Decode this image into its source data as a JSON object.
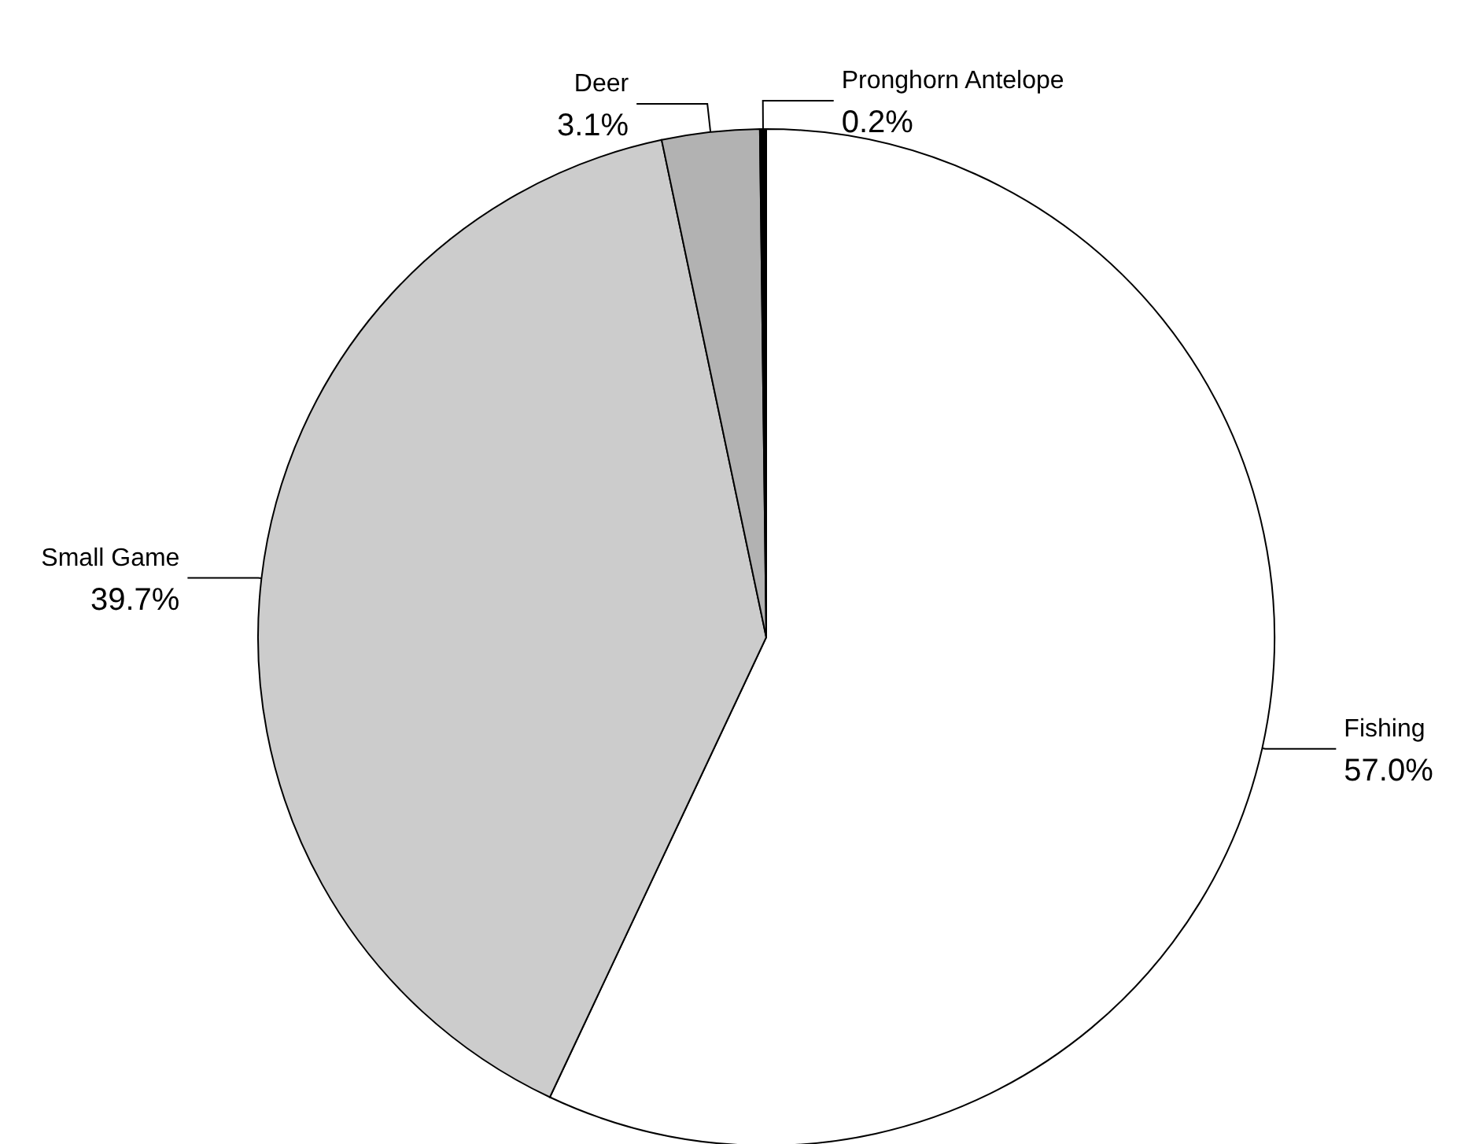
{
  "chart_data": {
    "type": "pie",
    "categories": [
      "Fishing",
      "Small Game",
      "Deer",
      "Pronghorn Antelope"
    ],
    "values": [
      57.0,
      39.7,
      3.1,
      0.2
    ],
    "value_labels": [
      "57.0%",
      "39.7%",
      "3.1%",
      "0.2%"
    ],
    "colors": [
      "#ffffff",
      "#cccccc",
      "#b2b2b2",
      "#000000"
    ],
    "legend": false
  }
}
